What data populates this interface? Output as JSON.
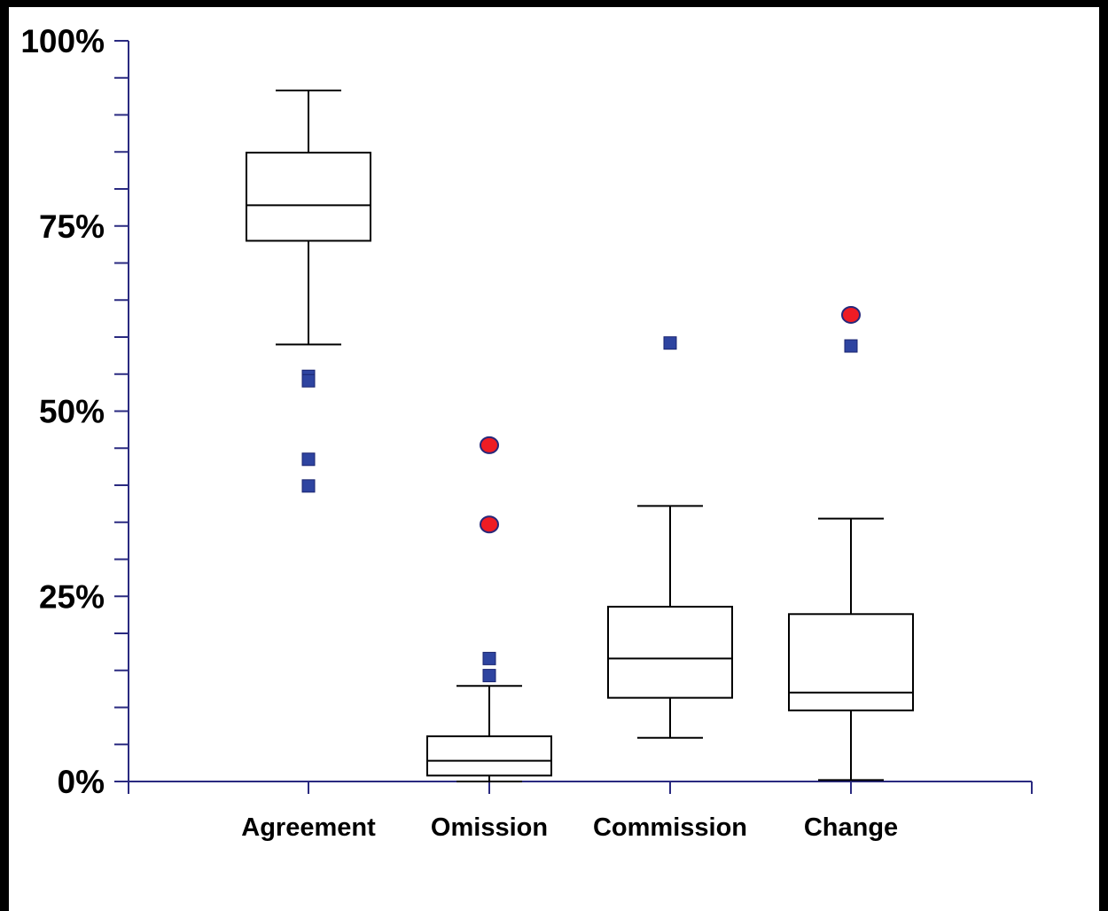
{
  "chart_data": {
    "type": "box",
    "categories": [
      "Agreement",
      "Omission",
      "Commission",
      "Change"
    ],
    "ylim": [
      0,
      100
    ],
    "yticks": [
      {
        "value": 0,
        "label": "0%"
      },
      {
        "value": 25,
        "label": "25%"
      },
      {
        "value": 50,
        "label": "50%"
      },
      {
        "value": 75,
        "label": "75%"
      },
      {
        "value": 100,
        "label": "100%"
      }
    ],
    "minor_tick_step": 5,
    "boxes": [
      {
        "category": "Agreement",
        "whisker_low": 59,
        "q1": 73,
        "median": 77.8,
        "q3": 84.9,
        "whisker_high": 93.3,
        "outliers_square": [
          54.7,
          54.1,
          43.5,
          39.9
        ],
        "outliers_circle": []
      },
      {
        "category": "Omission",
        "whisker_low": 0,
        "q1": 0.8,
        "median": 2.8,
        "q3": 6.1,
        "whisker_high": 12.9,
        "outliers_square": [
          16.6,
          14.3
        ],
        "outliers_circle": [
          45.4,
          34.7
        ]
      },
      {
        "category": "Commission",
        "whisker_low": 5.9,
        "q1": 11.3,
        "median": 16.6,
        "q3": 23.6,
        "whisker_high": 37.2,
        "outliers_square": [
          59.2
        ],
        "outliers_circle": []
      },
      {
        "category": "Change",
        "whisker_low": 0.2,
        "q1": 9.6,
        "median": 12,
        "q3": 22.6,
        "whisker_high": 35.5,
        "outliers_square": [
          58.8
        ],
        "outliers_circle": [
          63
        ]
      }
    ],
    "colors": {
      "axis": "#2a2a80",
      "square_outlier": "#2e44a0",
      "circle_outlier": "#ee1c24",
      "circle_outline": "#27287a",
      "box": "#000000"
    }
  }
}
